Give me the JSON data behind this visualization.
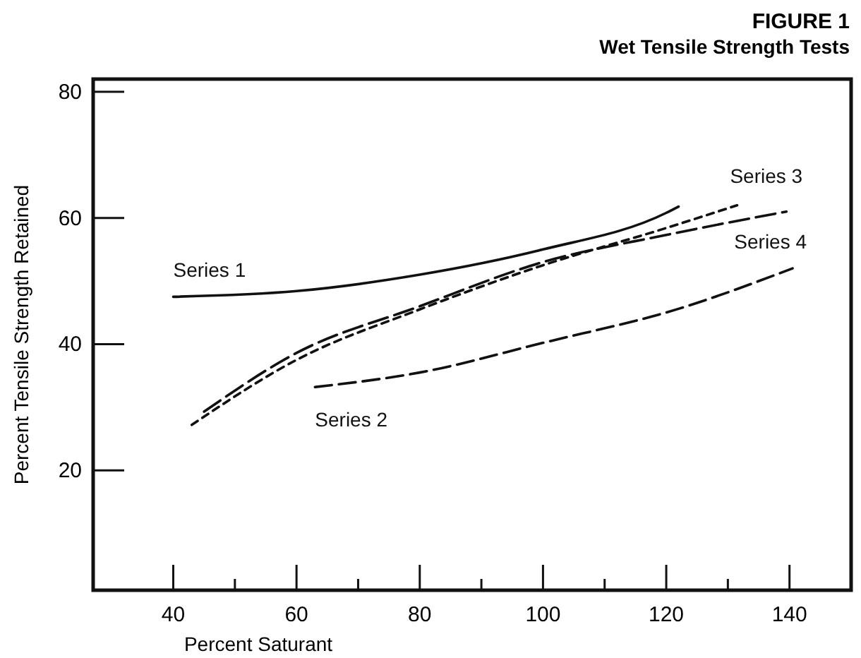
{
  "chart_data": {
    "type": "line",
    "title": "FIGURE 1",
    "subtitle": "Wet Tensile Strength Tests",
    "xlabel": "Percent Saturant",
    "ylabel": "Percent Tensile Strength Retained",
    "xlim": [
      27,
      150
    ],
    "ylim": [
      1,
      82
    ],
    "xticks": [
      40,
      {
        "value": 50,
        "label": null
      },
      60,
      {
        "value": 70,
        "label": null
      },
      80,
      {
        "value": 90,
        "label": null
      },
      100,
      {
        "value": 110,
        "label": null
      },
      120,
      {
        "value": 130,
        "label": null
      },
      140
    ],
    "yticks": [
      20,
      40,
      60,
      80
    ],
    "grid": false,
    "marker": "none",
    "series": [
      {
        "name": "Series 1",
        "color": "#111111",
        "line_style": "solid",
        "x": [
          40,
          60,
          80,
          100,
          120,
          122
        ],
        "values": [
          47.5,
          48.4,
          51,
          55,
          60.8,
          61.8
        ]
      },
      {
        "name": "Series 2",
        "color": "#111111",
        "line_style": "dashed",
        "x": [
          63,
          80,
          100,
          122,
          140.5
        ],
        "values": [
          33.2,
          35.5,
          40.2,
          45.6,
          52
        ]
      },
      {
        "name": "Series 3",
        "color": "#111111",
        "line_style": "dashed",
        "x": [
          43,
          60,
          80,
          100,
          120,
          131.5
        ],
        "values": [
          27.2,
          37.5,
          45.5,
          52.5,
          58.4,
          62
        ]
      },
      {
        "name": "Series 4",
        "color": "#111111",
        "line_style": "dashed",
        "x": [
          45,
          60,
          80,
          100,
          120,
          139.5
        ],
        "values": [
          29.3,
          38.6,
          46,
          53,
          57.3,
          61
        ]
      }
    ]
  }
}
